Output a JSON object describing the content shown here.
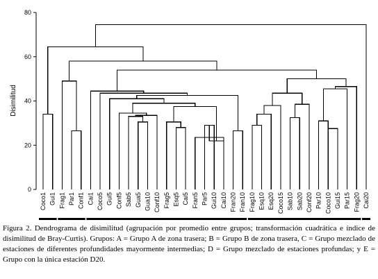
{
  "chart_data": {
    "type": "dendrogram",
    "ylabel": "Disimilitud",
    "ylim": [
      0,
      80
    ],
    "yticks": [
      0,
      20,
      40,
      60,
      80
    ],
    "leaves": [
      "Coco1",
      "Gui1",
      "Frag1",
      "Par1",
      "Conf1",
      "Cai1",
      "Coco5",
      "Gui5",
      "Conf5",
      "Sab5",
      "Gua5",
      "Gua10",
      "Conf10",
      "Frag5",
      "Esq5",
      "Cai5",
      "Fran5",
      "Par5",
      "Gui10",
      "Cai10",
      "Fran20",
      "Fran10",
      "Frag10",
      "Esq10",
      "Esq20",
      "Coco15",
      "Sab10",
      "Sab20",
      "Conf20",
      "Par10",
      "Coco10",
      "Gui15",
      "Par15",
      "Frag20",
      "Cai20"
    ],
    "merges": [
      {
        "id": "c1",
        "left": "Coco1",
        "right": "Gui1",
        "height": 34
      },
      {
        "id": "c2",
        "left": "Par1",
        "right": "Conf1",
        "height": 26.5
      },
      {
        "id": "c3",
        "left": "Frag1",
        "right": "c2",
        "height": 49
      },
      {
        "id": "c4",
        "left": "Gua5",
        "right": "Gua10",
        "height": 30.5
      },
      {
        "id": "c5",
        "left": "Sab5",
        "right": "c4",
        "height": 33
      },
      {
        "id": "c6",
        "left": "c5",
        "right": "Conf10",
        "height": 33.5
      },
      {
        "id": "c7",
        "left": "Conf5",
        "right": "c6",
        "height": 34.5
      },
      {
        "id": "c8",
        "left": "Esq5",
        "right": "Cai5",
        "height": 28
      },
      {
        "id": "c9",
        "left": "Frag5",
        "right": "c8",
        "height": 30.5
      },
      {
        "id": "c10",
        "left": "Par5",
        "right": "Gui10",
        "height": 29
      },
      {
        "id": "c11",
        "left": "c10",
        "right": "Cai10",
        "height": 22
      },
      {
        "id": "c12",
        "left": "Fran5",
        "right": "Cai10",
        "height": 23.5
      },
      {
        "id": "c13",
        "left": "c9",
        "right": "c11",
        "height": 37.5
      },
      {
        "id": "c14",
        "left": "c7",
        "right": "c13",
        "height": 39
      },
      {
        "id": "c15",
        "left": "Gui5",
        "right": "c14",
        "height": 41
      },
      {
        "id": "c16",
        "left": "Fran20",
        "right": "Fran10",
        "height": 26.5
      },
      {
        "id": "c17",
        "left": "c15",
        "right": "c16",
        "height": 42.5
      },
      {
        "id": "c18",
        "left": "Coco5",
        "right": "c17",
        "height": 43.5
      },
      {
        "id": "c19",
        "left": "Cai1",
        "right": "c18",
        "height": 44.5
      },
      {
        "id": "c20",
        "left": "Frag10",
        "right": "Esq10",
        "height": 29
      },
      {
        "id": "c21",
        "left": "c20",
        "right": "Esq20",
        "height": 34
      },
      {
        "id": "c22",
        "left": "c21",
        "right": "Coco15",
        "height": 38
      },
      {
        "id": "c23",
        "left": "Sab10",
        "right": "Sab20",
        "height": 32.5
      },
      {
        "id": "c24",
        "left": "c23",
        "right": "Conf20",
        "height": 38.5
      },
      {
        "id": "c25",
        "left": "c22",
        "right": "c24",
        "height": 43.5
      },
      {
        "id": "c26",
        "left": "Par10",
        "right": "Coco10",
        "height": 31
      },
      {
        "id": "c27",
        "left": "Gui15",
        "right": "Coco10",
        "height": 27.5
      },
      {
        "id": "c28",
        "left": "c26",
        "right": "Par15",
        "height": 45.5
      },
      {
        "id": "c29",
        "left": "c28",
        "right": "Frag20",
        "height": 46.5
      },
      {
        "id": "c30",
        "left": "c25",
        "right": "c29",
        "height": 50
      },
      {
        "id": "c31",
        "left": "c19",
        "right": "c30",
        "height": 54
      },
      {
        "id": "c32",
        "left": "c3",
        "right": "c31",
        "height": 58
      },
      {
        "id": "c33",
        "left": "c1",
        "right": "c32",
        "height": 64.5
      },
      {
        "id": "c34",
        "left": "c33",
        "right": "Cai20",
        "height": 74.5
      }
    ],
    "groups": [
      {
        "label": "A",
        "first": "Coco1",
        "last": "Gui1"
      },
      {
        "label": "B",
        "first": "Frag1",
        "last": "Conf1"
      },
      {
        "label": "C",
        "first": "Cai1",
        "last": "Fran10"
      },
      {
        "label": "D",
        "first": "Frag10",
        "last": "Frag20"
      },
      {
        "label": "E",
        "first": "Cai20",
        "last": "Cai20"
      }
    ]
  },
  "caption": "Figura 2. Dendrograma de disimilitud (agrupación por promedio entre grupos; transformación cuadrática e índice de disimilitud de Bray-Curtis). Grupos: A = Grupo A de zona trasera; B = Grupo B de zona trasera, C = Grupo mezclado de estaciones de diferentes profundidades mayormente intermedias; D = Grupo mezclado de estaciones profundas; y E = Grupo con la única estación D20."
}
